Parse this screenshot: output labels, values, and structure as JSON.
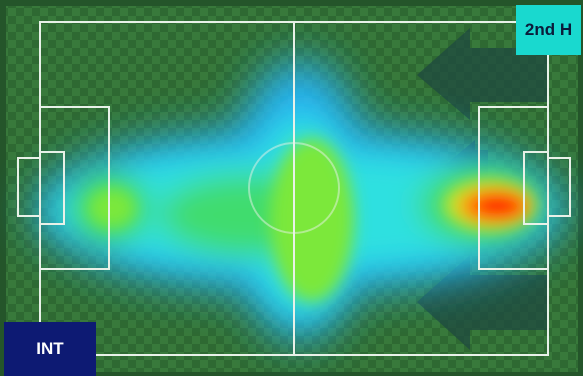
{
  "team_badge": {
    "label": "INT",
    "background": "#0d1a73",
    "color": "#ffffff"
  },
  "half_badge": {
    "label": "2nd H",
    "background": "#19d9cf",
    "color": "#0b1c3a"
  },
  "pitch": {
    "grass_dark": "#2f6b33",
    "grass_light": "#3a7d3d",
    "line_color": "#e8f1e8",
    "attack_direction": "right"
  },
  "heatmap_colors": [
    "#27b8ff",
    "#2fe0e0",
    "#3fdc6e",
    "#7be83a",
    "#c8e62a",
    "#ff8a00",
    "#ff1a00"
  ]
}
